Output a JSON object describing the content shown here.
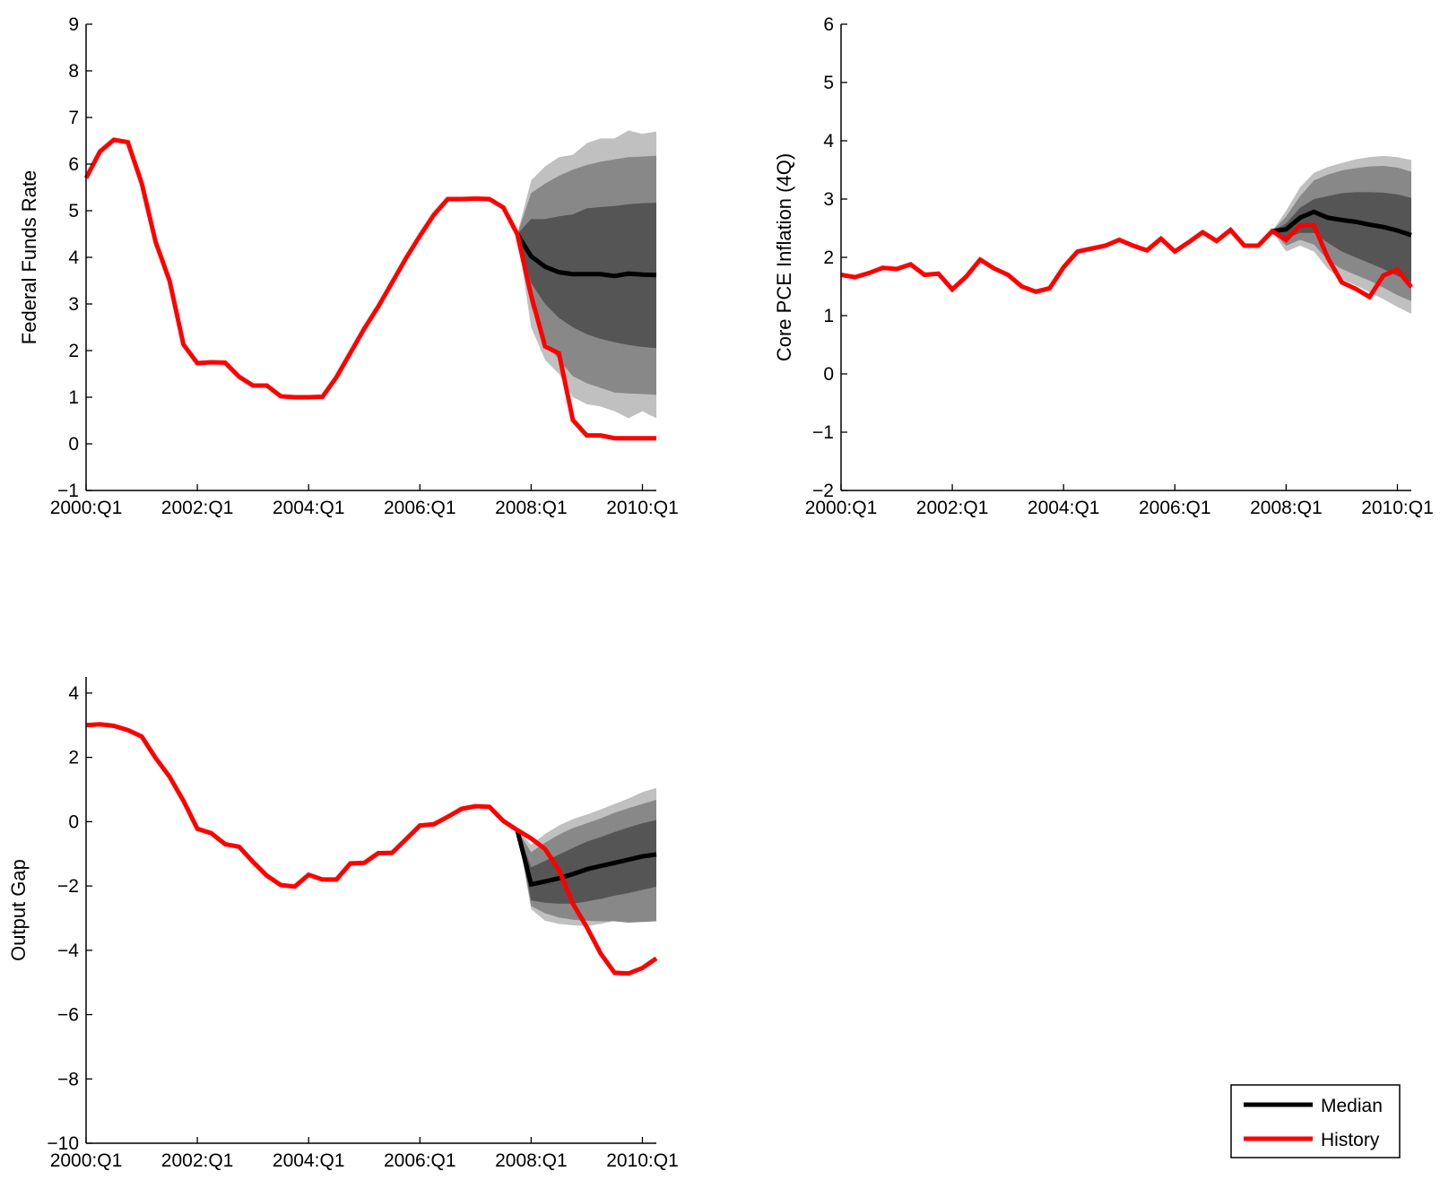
{
  "figure": {
    "background": "#ffffff"
  },
  "colors": {
    "history": "#ff0000",
    "median": "#000000",
    "band_outer": "#c0c0c0",
    "band_mid": "#888888",
    "band_inner": "#555555"
  },
  "legend": {
    "placement": "bottom-right",
    "items": [
      "Median",
      "History"
    ]
  },
  "chart_data": [
    {
      "type": "line",
      "panel": "top-left",
      "ylabel": "Federal Funds Rate",
      "xlabel": "",
      "title": "",
      "ylim": [
        -1,
        9
      ],
      "yticks": [
        -1,
        0,
        1,
        2,
        3,
        4,
        5,
        6,
        7,
        8,
        9
      ],
      "xlim": [
        2000.0,
        2010.25
      ],
      "xticks": [
        2000.0,
        2002.0,
        2004.0,
        2006.0,
        2008.0,
        2010.0
      ],
      "xticklabels": [
        "2000:Q1",
        "2002:Q1",
        "2004:Q1",
        "2006:Q1",
        "2008:Q1",
        "2010:Q1"
      ],
      "grid": false,
      "series": [
        {
          "name": "History",
          "color": "#ff0000",
          "x": [
            2000.0,
            2000.25,
            2000.5,
            2000.75,
            2001.0,
            2001.25,
            2001.5,
            2001.75,
            2002.0,
            2002.25,
            2002.5,
            2002.75,
            2003.0,
            2003.25,
            2003.5,
            2003.75,
            2004.0,
            2004.25,
            2004.5,
            2004.75,
            2005.0,
            2005.25,
            2005.5,
            2005.75,
            2006.0,
            2006.25,
            2006.5,
            2006.75,
            2007.0,
            2007.25,
            2007.5,
            2007.75,
            2008.0,
            2008.25,
            2008.5,
            2008.75,
            2009.0,
            2009.25,
            2009.5,
            2009.75,
            2010.0,
            2010.25
          ],
          "y": [
            5.7,
            6.27,
            6.52,
            6.47,
            5.59,
            4.33,
            3.5,
            2.13,
            1.73,
            1.75,
            1.74,
            1.44,
            1.25,
            1.25,
            1.02,
            1.0,
            1.0,
            1.01,
            1.43,
            1.95,
            2.47,
            2.94,
            3.46,
            3.98,
            4.46,
            4.91,
            5.25,
            5.25,
            5.26,
            5.25,
            5.07,
            4.5,
            3.18,
            2.09,
            1.94,
            0.51,
            0.18,
            0.18,
            0.12,
            0.12,
            0.12,
            0.12
          ]
        },
        {
          "name": "Median",
          "color": "#000000",
          "x": [
            2007.75,
            2008.0,
            2008.25,
            2008.5,
            2008.75,
            2009.0,
            2009.25,
            2009.5,
            2009.75,
            2010.0,
            2010.25
          ],
          "y": [
            4.5,
            4.02,
            3.8,
            3.68,
            3.64,
            3.64,
            3.64,
            3.6,
            3.65,
            3.63,
            3.62
          ]
        }
      ],
      "bands": {
        "x": [
          2007.75,
          2008.0,
          2008.25,
          2008.5,
          2008.75,
          2009.0,
          2009.25,
          2009.5,
          2009.75,
          2010.0,
          2010.25
        ],
        "outer": {
          "upper": [
            4.5,
            5.65,
            5.95,
            6.15,
            6.2,
            6.45,
            6.55,
            6.55,
            6.72,
            6.65,
            6.7
          ],
          "lower": [
            4.5,
            2.5,
            1.8,
            1.5,
            1.0,
            0.85,
            0.8,
            0.7,
            0.55,
            0.7,
            0.55
          ]
        },
        "middle": {
          "upper": [
            4.5,
            5.38,
            5.58,
            5.75,
            5.88,
            5.98,
            6.05,
            6.1,
            6.15,
            6.16,
            6.18
          ],
          "lower": [
            4.5,
            2.95,
            2.2,
            1.8,
            1.45,
            1.3,
            1.2,
            1.1,
            1.08,
            1.07,
            1.05
          ]
        },
        "inner": {
          "upper": [
            4.5,
            4.82,
            4.82,
            4.88,
            4.92,
            5.05,
            5.08,
            5.1,
            5.14,
            5.16,
            5.17
          ],
          "lower": [
            4.5,
            3.45,
            3.0,
            2.7,
            2.5,
            2.35,
            2.25,
            2.18,
            2.12,
            2.08,
            2.05
          ]
        }
      }
    },
    {
      "type": "line",
      "panel": "top-right",
      "ylabel": "Core PCE Inflation (4Q)",
      "xlabel": "",
      "title": "",
      "ylim": [
        -2,
        6
      ],
      "yticks": [
        -2,
        -1,
        0,
        1,
        2,
        3,
        4,
        5,
        6
      ],
      "xlim": [
        2000.0,
        2010.25
      ],
      "xticks": [
        2000.0,
        2002.0,
        2004.0,
        2006.0,
        2008.0,
        2010.0
      ],
      "xticklabels": [
        "2000:Q1",
        "2002:Q1",
        "2004:Q1",
        "2006:Q1",
        "2008:Q1",
        "2010:Q1"
      ],
      "grid": false,
      "series": [
        {
          "name": "History",
          "color": "#ff0000",
          "x": [
            2000.0,
            2000.25,
            2000.5,
            2000.75,
            2001.0,
            2001.25,
            2001.5,
            2001.75,
            2002.0,
            2002.25,
            2002.5,
            2002.75,
            2003.0,
            2003.25,
            2003.5,
            2003.75,
            2004.0,
            2004.25,
            2004.5,
            2004.75,
            2005.0,
            2005.25,
            2005.5,
            2005.75,
            2006.0,
            2006.25,
            2006.5,
            2006.75,
            2007.0,
            2007.25,
            2007.5,
            2007.75,
            2008.0,
            2008.25,
            2008.5,
            2008.75,
            2009.0,
            2009.25,
            2009.5,
            2009.75,
            2010.0,
            2010.25
          ],
          "y": [
            1.7,
            1.66,
            1.73,
            1.82,
            1.8,
            1.88,
            1.7,
            1.72,
            1.45,
            1.67,
            1.96,
            1.81,
            1.7,
            1.5,
            1.41,
            1.47,
            1.83,
            2.1,
            2.15,
            2.2,
            2.3,
            2.2,
            2.12,
            2.32,
            2.1,
            2.26,
            2.43,
            2.28,
            2.47,
            2.2,
            2.2,
            2.45,
            2.3,
            2.55,
            2.55,
            1.99,
            1.57,
            1.46,
            1.32,
            1.69,
            1.79,
            1.49
          ]
        },
        {
          "name": "Median",
          "color": "#000000",
          "x": [
            2007.75,
            2008.0,
            2008.25,
            2008.5,
            2008.75,
            2009.0,
            2009.25,
            2009.5,
            2009.75,
            2010.0,
            2010.25
          ],
          "y": [
            2.45,
            2.48,
            2.68,
            2.78,
            2.68,
            2.64,
            2.61,
            2.56,
            2.52,
            2.46,
            2.38
          ]
        }
      ],
      "bands": {
        "x": [
          2007.75,
          2008.0,
          2008.25,
          2008.5,
          2008.75,
          2009.0,
          2009.25,
          2009.5,
          2009.75,
          2010.0,
          2010.25
        ],
        "outer": {
          "upper": [
            2.45,
            2.8,
            3.2,
            3.45,
            3.55,
            3.62,
            3.68,
            3.72,
            3.74,
            3.72,
            3.67
          ],
          "lower": [
            2.45,
            2.1,
            2.2,
            2.1,
            1.8,
            1.62,
            1.52,
            1.4,
            1.28,
            1.15,
            1.03
          ]
        },
        "middle": {
          "upper": [
            2.45,
            2.7,
            3.05,
            3.32,
            3.42,
            3.49,
            3.53,
            3.56,
            3.57,
            3.54,
            3.47
          ],
          "lower": [
            2.45,
            2.2,
            2.3,
            2.22,
            1.95,
            1.8,
            1.7,
            1.6,
            1.48,
            1.35,
            1.25
          ]
        },
        "inner": {
          "upper": [
            2.45,
            2.58,
            2.85,
            3.0,
            3.05,
            3.1,
            3.12,
            3.12,
            3.11,
            3.08,
            3.02
          ],
          "lower": [
            2.45,
            2.33,
            2.42,
            2.42,
            2.25,
            2.1,
            2.0,
            1.9,
            1.8,
            1.68,
            1.58
          ]
        }
      }
    },
    {
      "type": "line",
      "panel": "bottom-left",
      "ylabel": "Output Gap",
      "xlabel": "",
      "title": "",
      "ylim": [
        -10,
        4.5
      ],
      "yticks": [
        -10,
        -8,
        -6,
        -4,
        -2,
        0,
        2,
        4
      ],
      "yticklabels": [
        "−10",
        "−8",
        "−6",
        "−4",
        "−2",
        "0",
        "2",
        "4"
      ],
      "xlim": [
        2000.0,
        2010.25
      ],
      "xticks": [
        2000.0,
        2002.0,
        2004.0,
        2006.0,
        2008.0,
        2010.0
      ],
      "xticklabels": [
        "2000:Q1",
        "2002:Q1",
        "2004:Q1",
        "2006:Q1",
        "2008:Q1",
        "2010:Q1"
      ],
      "grid": false,
      "series": [
        {
          "name": "History",
          "color": "#ff0000",
          "x": [
            2000.0,
            2000.25,
            2000.5,
            2000.75,
            2001.0,
            2001.25,
            2001.5,
            2001.75,
            2002.0,
            2002.25,
            2002.5,
            2002.75,
            2003.0,
            2003.25,
            2003.5,
            2003.75,
            2004.0,
            2004.25,
            2004.5,
            2004.75,
            2005.0,
            2005.25,
            2005.5,
            2005.75,
            2006.0,
            2006.25,
            2006.5,
            2006.75,
            2007.0,
            2007.25,
            2007.5,
            2007.75,
            2008.0,
            2008.25,
            2008.5,
            2008.75,
            2009.0,
            2009.25,
            2009.5,
            2009.75,
            2010.0,
            2010.25
          ],
          "y": [
            3.0,
            3.03,
            2.98,
            2.85,
            2.65,
            1.98,
            1.4,
            0.65,
            -0.22,
            -0.36,
            -0.7,
            -0.78,
            -1.25,
            -1.68,
            -1.97,
            -2.02,
            -1.65,
            -1.8,
            -1.8,
            -1.3,
            -1.28,
            -0.98,
            -0.97,
            -0.55,
            -0.12,
            -0.08,
            0.15,
            0.4,
            0.48,
            0.46,
            0.02,
            -0.26,
            -0.52,
            -0.85,
            -1.5,
            -2.55,
            -3.28,
            -4.1,
            -4.7,
            -4.72,
            -4.55,
            -4.25
          ]
        },
        {
          "name": "Median",
          "color": "#000000",
          "x": [
            2007.75,
            2008.0,
            2008.25,
            2008.5,
            2008.75,
            2009.0,
            2009.25,
            2009.5,
            2009.75,
            2010.0,
            2010.25
          ],
          "y": [
            -0.26,
            -1.95,
            -1.86,
            -1.76,
            -1.63,
            -1.48,
            -1.38,
            -1.28,
            -1.18,
            -1.08,
            -1.02
          ]
        }
      ],
      "bands": {
        "x": [
          2007.75,
          2008.0,
          2008.25,
          2008.5,
          2008.75,
          2009.0,
          2009.25,
          2009.5,
          2009.75,
          2010.0,
          2010.25
        ],
        "outer": {
          "upper": [
            -0.26,
            -0.72,
            -0.38,
            -0.12,
            0.08,
            0.22,
            0.38,
            0.55,
            0.72,
            0.92,
            1.05
          ],
          "lower": [
            -0.26,
            -2.72,
            -3.08,
            -3.18,
            -3.22,
            -3.25,
            -3.18,
            -3.08,
            -3.1,
            -3.05,
            -2.98
          ]
        },
        "middle": {
          "upper": [
            -0.26,
            -0.95,
            -0.65,
            -0.4,
            -0.2,
            -0.05,
            0.1,
            0.28,
            0.42,
            0.55,
            0.68
          ],
          "lower": [
            -0.26,
            -2.62,
            -2.85,
            -2.98,
            -3.05,
            -3.08,
            -3.1,
            -3.1,
            -3.14,
            -3.12,
            -3.1
          ]
        },
        "inner": {
          "upper": [
            -0.26,
            -1.42,
            -1.22,
            -1.02,
            -0.82,
            -0.62,
            -0.48,
            -0.32,
            -0.18,
            -0.05,
            0.05
          ],
          "lower": [
            -0.26,
            -2.45,
            -2.52,
            -2.55,
            -2.55,
            -2.48,
            -2.4,
            -2.3,
            -2.22,
            -2.12,
            -2.02
          ]
        }
      }
    }
  ]
}
